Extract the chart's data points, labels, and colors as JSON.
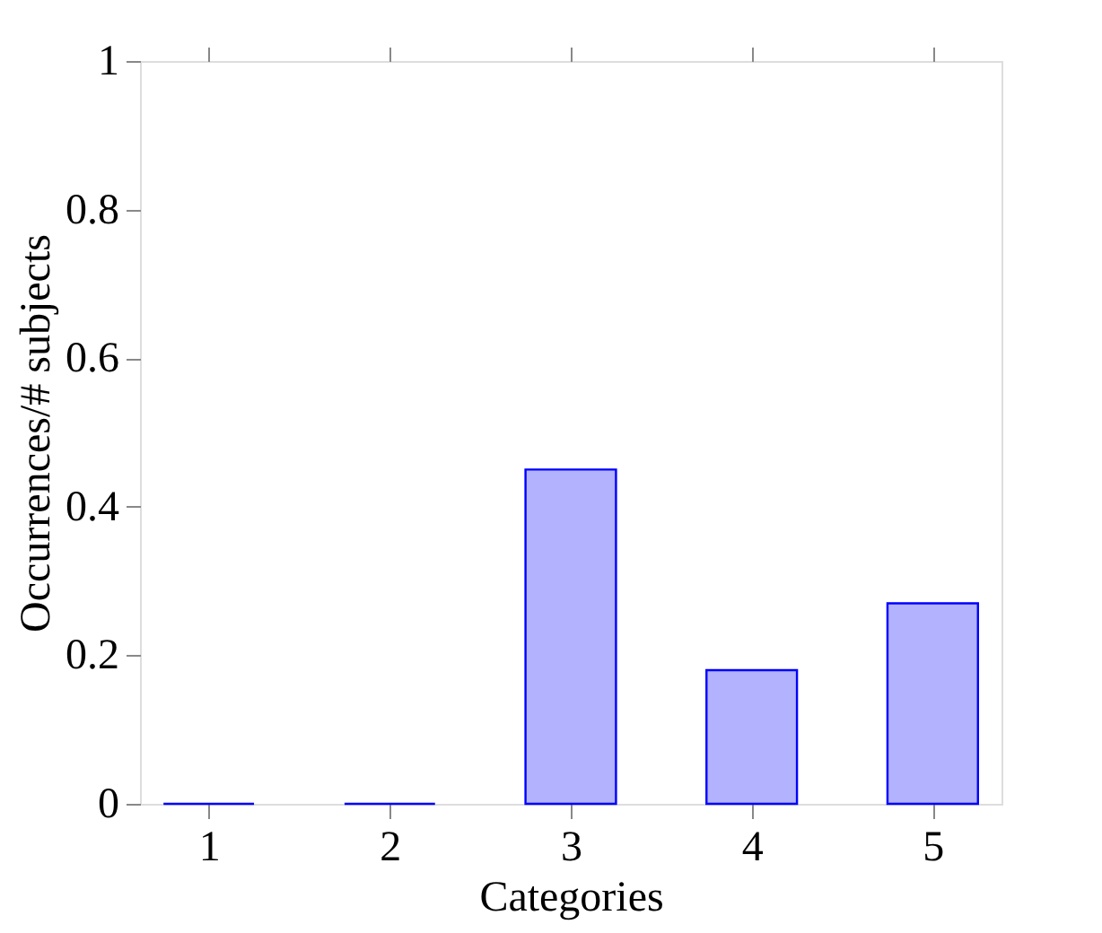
{
  "chart_data": {
    "type": "bar",
    "xlabel": "Categories",
    "ylabel": "Occurrences/# subjects",
    "x": [
      1,
      2,
      3,
      4,
      5
    ],
    "series": [
      {
        "color": "#0000ff",
        "values": [
          0,
          0,
          0.45,
          0.18,
          0.27
        ]
      }
    ],
    "xlim": [
      0.62,
      5.38
    ],
    "xticks": [
      1,
      2,
      3,
      4,
      5
    ],
    "ylim": [
      0,
      1
    ],
    "yticks": [
      0,
      0.2,
      0.4,
      0.6,
      0.8,
      1
    ],
    "grid": false
  }
}
